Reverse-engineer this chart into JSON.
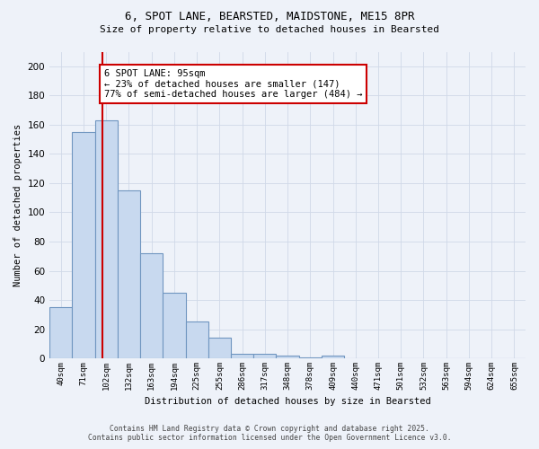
{
  "title1": "6, SPOT LANE, BEARSTED, MAIDSTONE, ME15 8PR",
  "title2": "Size of property relative to detached houses in Bearsted",
  "xlabel": "Distribution of detached houses by size in Bearsted",
  "ylabel": "Number of detached properties",
  "categories": [
    "40sqm",
    "71sqm",
    "102sqm",
    "132sqm",
    "163sqm",
    "194sqm",
    "225sqm",
    "255sqm",
    "286sqm",
    "317sqm",
    "348sqm",
    "378sqm",
    "409sqm",
    "440sqm",
    "471sqm",
    "501sqm",
    "532sqm",
    "563sqm",
    "594sqm",
    "624sqm",
    "655sqm"
  ],
  "values": [
    35,
    155,
    163,
    115,
    72,
    45,
    25,
    14,
    3,
    3,
    2,
    1,
    2,
    0,
    0,
    0,
    0,
    0,
    0,
    0,
    0
  ],
  "bar_color": "#c8d9ef",
  "bar_edge_color": "#7096c0",
  "red_line_color": "#cc0000",
  "red_line_x": 1.85,
  "annotation_text": "6 SPOT LANE: 95sqm\n← 23% of detached houses are smaller (147)\n77% of semi-detached houses are larger (484) →",
  "annotation_box_facecolor": "#ffffff",
  "annotation_box_edgecolor": "#cc0000",
  "grid_color": "#d0d8e8",
  "footer1": "Contains HM Land Registry data © Crown copyright and database right 2025.",
  "footer2": "Contains public sector information licensed under the Open Government Licence v3.0.",
  "ylim": [
    0,
    210
  ],
  "yticks": [
    0,
    20,
    40,
    60,
    80,
    100,
    120,
    140,
    160,
    180,
    200
  ],
  "background_color": "#eef2f9"
}
